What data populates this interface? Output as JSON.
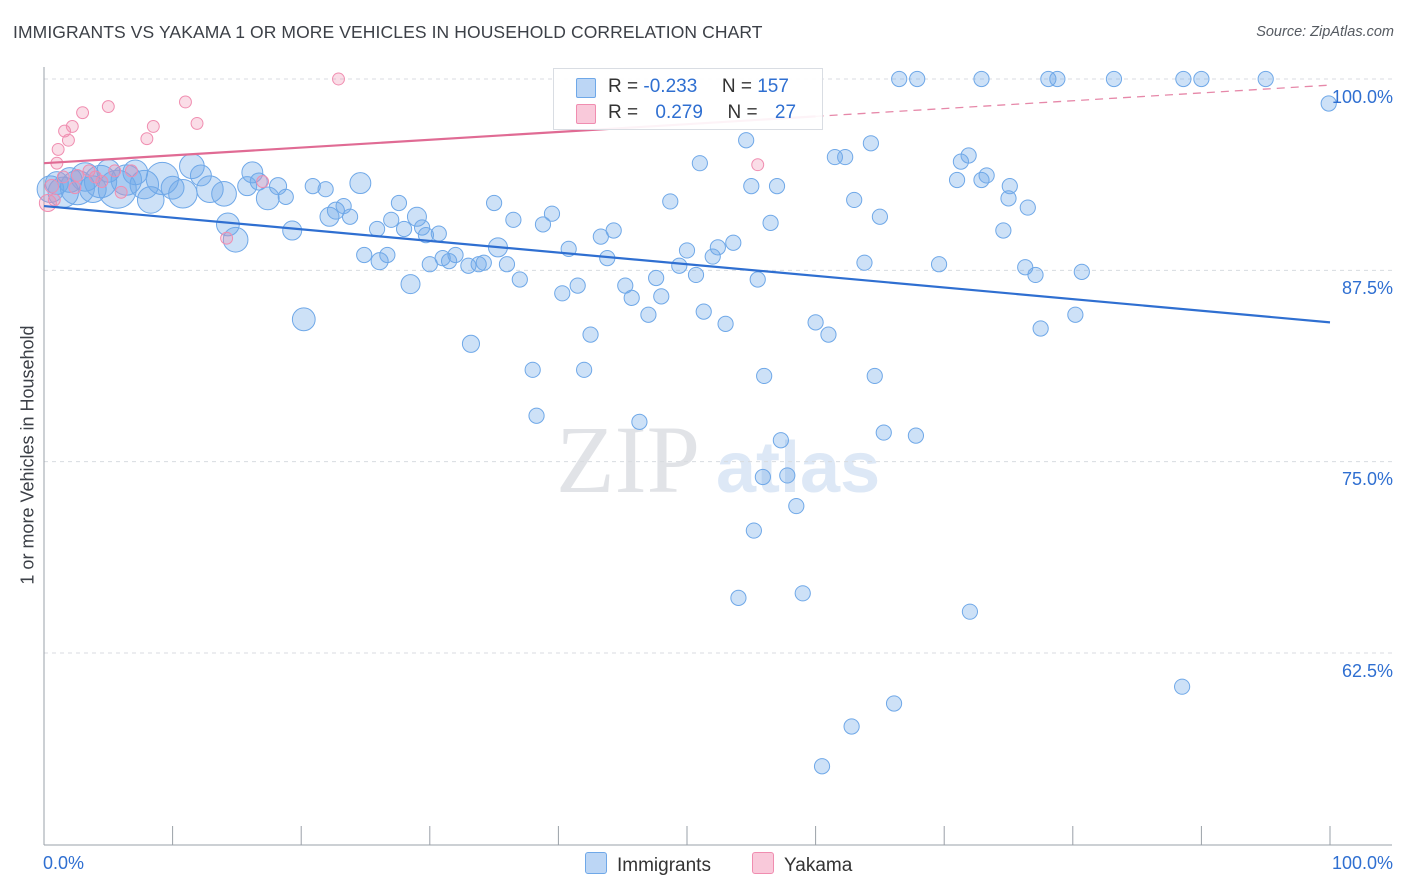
{
  "title": "IMMIGRANTS VS YAKAMA 1 OR MORE VEHICLES IN HOUSEHOLD CORRELATION CHART",
  "source": "Source: ZipAtlas.com",
  "watermark": {
    "zip": "ZIP",
    "atlas": "atlas"
  },
  "legend_stats": [
    {
      "name": "Immigrants",
      "r_label": "R =",
      "r": "-0.233",
      "n_label": "N =",
      "n": "157",
      "color": "#6fa8e8"
    },
    {
      "name": "Yakama",
      "r_label": "R =",
      "r": "0.279",
      "n_label": "N =",
      "n": "27",
      "color": "#f08db0"
    }
  ],
  "chart_data": {
    "type": "scatter",
    "title": "IMMIGRANTS VS YAKAMA 1 OR MORE VEHICLES IN HOUSEHOLD CORRELATION CHART",
    "xlabel": "",
    "ylabel": "1 or more Vehicles in Household",
    "xlim": [
      0,
      100
    ],
    "ylim": [
      50,
      102
    ],
    "x_tick_labels": [
      "0.0%",
      "100.0%"
    ],
    "y_ticks": [
      {
        "value": 100,
        "label": "100.0%"
      },
      {
        "value": 87.5,
        "label": "87.5%"
      },
      {
        "value": 75,
        "label": "75.0%"
      },
      {
        "value": 62.5,
        "label": "62.5%"
      }
    ],
    "grid": true,
    "series": [
      {
        "name": "Immigrants",
        "color": "#6fa8e8",
        "trend": {
          "x0": 0,
          "y0": 91.7,
          "x1": 100,
          "y1": 84.1,
          "dashed_from": null
        },
        "points": [
          [
            0.5,
            92.8,
            1.4
          ],
          [
            1.0,
            93.2,
            1.2
          ],
          [
            1.5,
            92.6,
            1.6
          ],
          [
            2.0,
            93.4,
            1.3
          ],
          [
            2.6,
            92.9,
            1.8
          ],
          [
            3.2,
            93.6,
            1.5
          ],
          [
            3.8,
            92.8,
            1.4
          ],
          [
            4.4,
            93.3,
            1.7
          ],
          [
            5.0,
            94.0,
            1.2
          ],
          [
            5.7,
            92.8,
            2.0
          ],
          [
            6.4,
            93.4,
            1.6
          ],
          [
            7.1,
            93.9,
            1.3
          ],
          [
            7.8,
            93.1,
            1.5
          ],
          [
            8.3,
            92.1,
            1.4
          ],
          [
            9.2,
            93.5,
            1.7
          ],
          [
            10.0,
            92.9,
            1.2
          ],
          [
            10.8,
            92.5,
            1.5
          ],
          [
            11.5,
            94.3,
            1.3
          ],
          [
            12.2,
            93.7,
            1.1
          ],
          [
            12.9,
            92.8,
            1.4
          ],
          [
            14.0,
            92.5,
            1.3
          ],
          [
            14.3,
            90.5,
            1.2
          ],
          [
            14.9,
            89.5,
            1.3
          ],
          [
            15.8,
            93.0,
            1.0
          ],
          [
            16.2,
            93.9,
            1.1
          ],
          [
            16.7,
            93.3,
            0.9
          ],
          [
            17.4,
            92.2,
            1.2
          ],
          [
            18.2,
            93.0,
            0.9
          ],
          [
            18.8,
            92.3,
            0.8
          ],
          [
            19.3,
            90.1,
            1.0
          ],
          [
            20.2,
            84.3,
            1.2
          ],
          [
            20.9,
            93.0,
            0.8
          ],
          [
            21.9,
            92.8,
            0.8
          ],
          [
            22.2,
            91.0,
            1.0
          ],
          [
            22.7,
            91.4,
            0.9
          ],
          [
            23.3,
            91.7,
            0.8
          ],
          [
            23.8,
            91.0,
            0.8
          ],
          [
            24.6,
            93.2,
            1.1
          ],
          [
            24.9,
            88.5,
            0.8
          ],
          [
            25.9,
            90.2,
            0.8
          ],
          [
            26.1,
            88.1,
            0.9
          ],
          [
            26.7,
            88.5,
            0.8
          ],
          [
            27.0,
            90.8,
            0.8
          ],
          [
            27.6,
            91.9,
            0.8
          ],
          [
            28.0,
            90.2,
            0.8
          ],
          [
            28.5,
            86.6,
            1.0
          ],
          [
            29.0,
            91.0,
            1.0
          ],
          [
            29.4,
            90.3,
            0.8
          ],
          [
            29.7,
            89.8,
            0.8
          ],
          [
            30.0,
            87.9,
            0.8
          ],
          [
            30.7,
            89.9,
            0.8
          ],
          [
            31.0,
            88.3,
            0.8
          ],
          [
            31.5,
            88.1,
            0.8
          ],
          [
            32.0,
            88.5,
            0.8
          ],
          [
            33.0,
            87.8,
            0.8
          ],
          [
            33.2,
            82.7,
            0.9
          ],
          [
            33.8,
            87.9,
            0.8
          ],
          [
            34.2,
            88.0,
            0.8
          ],
          [
            35.0,
            91.9,
            0.8
          ],
          [
            35.3,
            89.0,
            1.0
          ],
          [
            36.0,
            87.9,
            0.8
          ],
          [
            36.5,
            90.8,
            0.8
          ],
          [
            37.0,
            86.9,
            0.8
          ],
          [
            38.0,
            81.0,
            0.8
          ],
          [
            38.3,
            78.0,
            0.8
          ],
          [
            38.8,
            90.5,
            0.8
          ],
          [
            39.5,
            91.2,
            0.8
          ],
          [
            40.3,
            86.0,
            0.8
          ],
          [
            40.8,
            88.9,
            0.8
          ],
          [
            41.5,
            86.5,
            0.8
          ],
          [
            42.0,
            81.0,
            0.8
          ],
          [
            42.5,
            83.3,
            0.8
          ],
          [
            43.3,
            89.7,
            0.8
          ],
          [
            43.8,
            88.3,
            0.8
          ],
          [
            44.3,
            90.1,
            0.8
          ],
          [
            45.2,
            86.5,
            0.8
          ],
          [
            45.7,
            85.7,
            0.8
          ],
          [
            46.3,
            77.6,
            0.8
          ],
          [
            47.0,
            84.6,
            0.8
          ],
          [
            47.6,
            87.0,
            0.8
          ],
          [
            48.0,
            85.8,
            0.8
          ],
          [
            48.7,
            92.0,
            0.8
          ],
          [
            49.4,
            87.8,
            0.8
          ],
          [
            50.0,
            88.8,
            0.8
          ],
          [
            50.7,
            87.2,
            0.8
          ],
          [
            51.0,
            94.5,
            0.8
          ],
          [
            51.3,
            84.8,
            0.8
          ],
          [
            52.0,
            88.4,
            0.8
          ],
          [
            52.4,
            89.0,
            0.8
          ],
          [
            53.0,
            84.0,
            0.8
          ],
          [
            53.6,
            89.3,
            0.8
          ],
          [
            54.0,
            66.1,
            0.8
          ],
          [
            54.6,
            96.0,
            0.8
          ],
          [
            55.0,
            93.0,
            0.8
          ],
          [
            55.2,
            70.5,
            0.8
          ],
          [
            55.5,
            86.9,
            0.8
          ],
          [
            55.9,
            74.0,
            0.8
          ],
          [
            56.0,
            80.6,
            0.8
          ],
          [
            56.5,
            90.6,
            0.8
          ],
          [
            57.0,
            93.0,
            0.8
          ],
          [
            57.3,
            76.4,
            0.8
          ],
          [
            57.8,
            74.1,
            0.8
          ],
          [
            58.5,
            72.1,
            0.8
          ],
          [
            59.0,
            66.4,
            0.8
          ],
          [
            60.0,
            84.1,
            0.8
          ],
          [
            60.5,
            55.1,
            0.8
          ],
          [
            61.0,
            83.3,
            0.8
          ],
          [
            61.5,
            94.9,
            0.8
          ],
          [
            62.3,
            94.9,
            0.8
          ],
          [
            62.8,
            57.7,
            0.8
          ],
          [
            63.0,
            92.1,
            0.8
          ],
          [
            63.8,
            88.0,
            0.8
          ],
          [
            64.3,
            95.8,
            0.8
          ],
          [
            64.6,
            80.6,
            0.8
          ],
          [
            65.0,
            91.0,
            0.8
          ],
          [
            65.3,
            76.9,
            0.8
          ],
          [
            66.1,
            59.2,
            0.8
          ],
          [
            66.5,
            100.0,
            0.8
          ],
          [
            67.8,
            76.7,
            0.8
          ],
          [
            67.9,
            100.0,
            0.8
          ],
          [
            69.6,
            87.9,
            0.8
          ],
          [
            71.0,
            93.4,
            0.8
          ],
          [
            71.3,
            94.6,
            0.8
          ],
          [
            71.9,
            95.0,
            0.8
          ],
          [
            72.0,
            65.2,
            0.8
          ],
          [
            72.9,
            93.4,
            0.8
          ],
          [
            72.9,
            100.0,
            0.8
          ],
          [
            73.3,
            93.7,
            0.8
          ],
          [
            74.6,
            90.1,
            0.8
          ],
          [
            75.0,
            92.2,
            0.8
          ],
          [
            75.1,
            93.0,
            0.8
          ],
          [
            76.3,
            87.7,
            0.8
          ],
          [
            76.5,
            91.6,
            0.8
          ],
          [
            77.1,
            87.2,
            0.8
          ],
          [
            77.5,
            83.7,
            0.8
          ],
          [
            78.1,
            100.0,
            0.8
          ],
          [
            78.8,
            100.0,
            0.8
          ],
          [
            80.2,
            84.6,
            0.8
          ],
          [
            80.7,
            87.4,
            0.8
          ],
          [
            83.2,
            100.0,
            0.8
          ],
          [
            88.5,
            60.3,
            0.8
          ],
          [
            88.6,
            100.0,
            0.8
          ],
          [
            90.0,
            100.0,
            0.8
          ],
          [
            95.0,
            100.0,
            0.8
          ],
          [
            99.9,
            98.4,
            0.8
          ]
        ]
      },
      {
        "name": "Yakama",
        "color": "#f08db0",
        "trend": {
          "x0": 0,
          "y0": 94.5,
          "x1": 100,
          "y1": 99.6,
          "dashed_from": 60
        },
        "points": [
          [
            0.3,
            91.9,
            1.0
          ],
          [
            0.6,
            93.0,
            0.8
          ],
          [
            0.8,
            92.1,
            0.7
          ],
          [
            1.0,
            94.5,
            0.7
          ],
          [
            1.1,
            95.4,
            0.7
          ],
          [
            1.5,
            93.6,
            0.7
          ],
          [
            1.6,
            96.6,
            0.7
          ],
          [
            1.9,
            96.0,
            0.7
          ],
          [
            2.2,
            96.9,
            0.7
          ],
          [
            2.4,
            92.9,
            0.7
          ],
          [
            2.6,
            93.7,
            0.7
          ],
          [
            3.0,
            97.8,
            0.7
          ],
          [
            3.5,
            94.0,
            0.7
          ],
          [
            4.0,
            93.6,
            0.7
          ],
          [
            4.5,
            93.3,
            0.7
          ],
          [
            5.0,
            98.2,
            0.7
          ],
          [
            5.5,
            94.0,
            0.7
          ],
          [
            6.0,
            92.6,
            0.7
          ],
          [
            6.8,
            94.0,
            0.7
          ],
          [
            8.0,
            96.1,
            0.7
          ],
          [
            8.5,
            96.9,
            0.7
          ],
          [
            11.0,
            98.5,
            0.7
          ],
          [
            11.9,
            97.1,
            0.7
          ],
          [
            14.2,
            89.6,
            0.7
          ],
          [
            17.0,
            93.3,
            0.7
          ],
          [
            22.9,
            100.0,
            0.7
          ],
          [
            55.5,
            94.4,
            0.7
          ]
        ]
      }
    ]
  }
}
